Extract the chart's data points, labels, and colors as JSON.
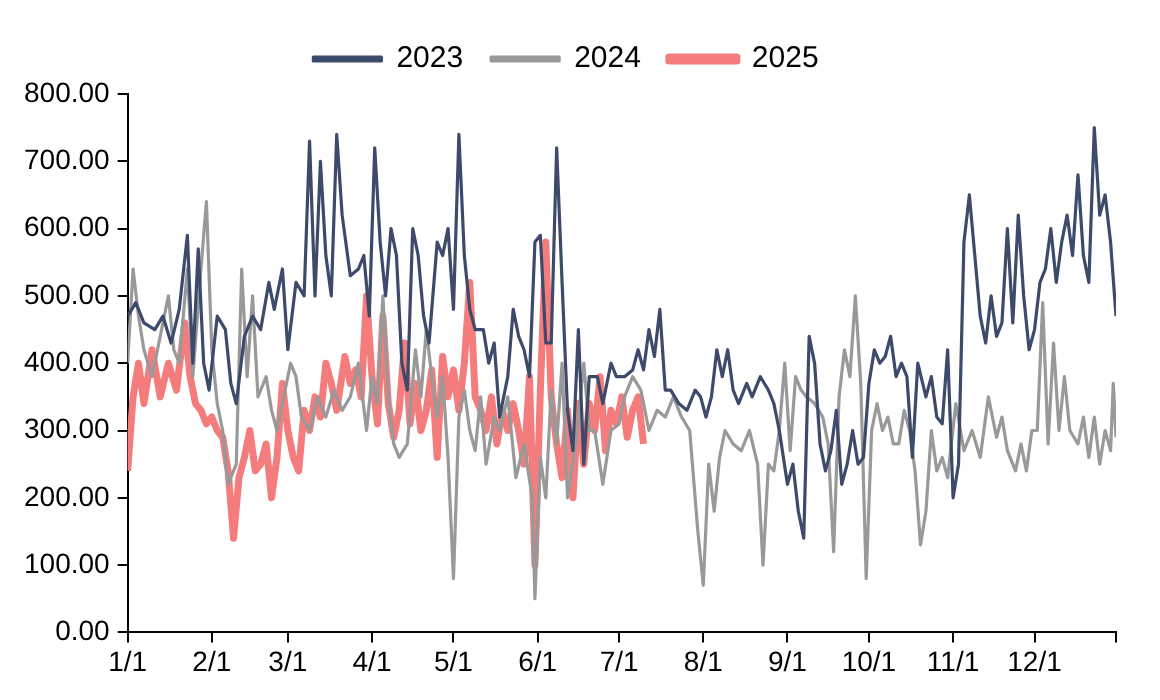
{
  "chart_data": {
    "type": "line",
    "legend": "top",
    "xlim": [
      "--01-01",
      "--12-31"
    ],
    "xticks": [
      {
        "value": "--01-01",
        "label": "1/1"
      },
      {
        "value": "--02-01",
        "label": "2/1"
      },
      {
        "value": "--03-01",
        "label": "3/1"
      },
      {
        "value": "--04-01",
        "label": "4/1"
      },
      {
        "value": "--05-01",
        "label": "5/1"
      },
      {
        "value": "--06-01",
        "label": "6/1"
      },
      {
        "value": "--07-01",
        "label": "7/1"
      },
      {
        "value": "--08-01",
        "label": "8/1"
      },
      {
        "value": "--09-01",
        "label": "9/1"
      },
      {
        "value": "--10-01",
        "label": "10/1"
      },
      {
        "value": "--11-01",
        "label": "11/1"
      },
      {
        "value": "--12-01",
        "label": "12/1"
      },
      {
        "value": "--12-31",
        "label": null
      }
    ],
    "ylim": [
      0,
      800
    ],
    "yticks": [
      {
        "value": 0,
        "label": "0.00"
      },
      {
        "value": 100,
        "label": "100.00"
      },
      {
        "value": 200,
        "label": "200.00"
      },
      {
        "value": 300,
        "label": "300.00"
      },
      {
        "value": 400,
        "label": "400.00"
      },
      {
        "value": 500,
        "label": "500.00"
      },
      {
        "value": 600,
        "label": "600.00"
      },
      {
        "value": 700,
        "label": "700.00"
      },
      {
        "value": 800,
        "label": "800.00"
      }
    ],
    "series": [
      {
        "name": "2023",
        "color": "#3d4a6b",
        "x": [
          "--01-01",
          "--01-04",
          "--01-07",
          "--01-11",
          "--01-14",
          "--01-17",
          "--01-20",
          "--01-23",
          "--01-25",
          "--01-27",
          "--01-29",
          "--01-31",
          "--02-03",
          "--02-06",
          "--02-08",
          "--02-10",
          "--02-13",
          "--02-16",
          "--02-19",
          "--02-22",
          "--02-24",
          "--02-27",
          "--03-01",
          "--03-04",
          "--03-07",
          "--03-09",
          "--03-11",
          "--03-13",
          "--03-15",
          "--03-17",
          "--03-19",
          "--03-21",
          "--03-24",
          "--03-27",
          "--03-29",
          "--03-31",
          "--04-02",
          "--04-04",
          "--04-06",
          "--04-08",
          "--04-10",
          "--04-12",
          "--04-14",
          "--04-16",
          "--04-18",
          "--04-20",
          "--04-22",
          "--04-25",
          "--04-27",
          "--04-29",
          "--05-01",
          "--05-03",
          "--05-05",
          "--05-07",
          "--05-09",
          "--05-12",
          "--05-14",
          "--05-16",
          "--05-18",
          "--05-21",
          "--05-23",
          "--05-25",
          "--05-27",
          "--05-29",
          "--05-31",
          "--06-02",
          "--06-04",
          "--06-06",
          "--06-08",
          "--06-10",
          "--06-12",
          "--06-14",
          "--06-16",
          "--06-18",
          "--06-20",
          "--06-23",
          "--06-25",
          "--06-28",
          "--06-30",
          "--07-03",
          "--07-06",
          "--07-08",
          "--07-10",
          "--07-12",
          "--07-14",
          "--07-16",
          "--07-18",
          "--07-20",
          "--07-23",
          "--07-26",
          "--07-29",
          "--07-31",
          "--08-02",
          "--08-04",
          "--08-06",
          "--08-08",
          "--08-10",
          "--08-12",
          "--08-14",
          "--08-17",
          "--08-19",
          "--08-22",
          "--08-25",
          "--08-27",
          "--08-29",
          "--09-01",
          "--09-03",
          "--09-05",
          "--09-07",
          "--09-09",
          "--09-11",
          "--09-13",
          "--09-15",
          "--09-17",
          "--09-19",
          "--09-21",
          "--09-23",
          "--09-25",
          "--09-27",
          "--09-29",
          "--10-01",
          "--10-03",
          "--10-05",
          "--10-07",
          "--10-09",
          "--10-11",
          "--10-13",
          "--10-15",
          "--10-17",
          "--10-19",
          "--10-22",
          "--10-24",
          "--10-26",
          "--10-28",
          "--10-30",
          "--11-01",
          "--11-03",
          "--11-05",
          "--11-07",
          "--11-09",
          "--11-11",
          "--11-13",
          "--11-15",
          "--11-17",
          "--11-19",
          "--11-21",
          "--11-23",
          "--11-25",
          "--11-27",
          "--11-29",
          "--12-01",
          "--12-03",
          "--12-05",
          "--12-07",
          "--12-09",
          "--12-11",
          "--12-13",
          "--12-15",
          "--12-17",
          "--12-19",
          "--12-21",
          "--12-23",
          "--12-25",
          "--12-27",
          "--12-29",
          "--12-31"
        ],
        "values": [
          470,
          490,
          460,
          450,
          470,
          430,
          480,
          590,
          400,
          570,
          400,
          360,
          470,
          450,
          370,
          340,
          440,
          470,
          450,
          520,
          480,
          540,
          420,
          520,
          500,
          730,
          500,
          700,
          560,
          500,
          740,
          620,
          530,
          540,
          560,
          470,
          720,
          580,
          500,
          600,
          560,
          400,
          360,
          600,
          560,
          470,
          430,
          580,
          560,
          600,
          480,
          740,
          560,
          480,
          450,
          450,
          400,
          430,
          320,
          380,
          480,
          440,
          420,
          380,
          580,
          590,
          430,
          430,
          720,
          520,
          330,
          270,
          450,
          250,
          380,
          380,
          340,
          400,
          380,
          380,
          390,
          420,
          390,
          450,
          410,
          480,
          360,
          360,
          340,
          330,
          360,
          350,
          320,
          350,
          420,
          380,
          420,
          360,
          340,
          370,
          350,
          380,
          360,
          340,
          300,
          220,
          250,
          180,
          140,
          440,
          400,
          280,
          240,
          270,
          330,
          220,
          250,
          300,
          250,
          260,
          370,
          420,
          400,
          410,
          440,
          380,
          400,
          380,
          260,
          400,
          350,
          380,
          320,
          310,
          420,
          200,
          250,
          580,
          650,
          560,
          470,
          430,
          500,
          440,
          460,
          600,
          460,
          620,
          500,
          420,
          450,
          520,
          540,
          600,
          520,
          580,
          620,
          560,
          680,
          560,
          520,
          750,
          620,
          650,
          580,
          470
        ]
      },
      {
        "name": "2024",
        "color": "#999999",
        "x": [
          "--01-01",
          "--01-03",
          "--01-05",
          "--01-07",
          "--01-10",
          "--01-13",
          "--01-16",
          "--01-18",
          "--01-20",
          "--01-23",
          "--01-25",
          "--01-28",
          "--01-30",
          "--02-01",
          "--02-03",
          "--02-05",
          "--02-07",
          "--02-10",
          "--02-12",
          "--02-14",
          "--02-16",
          "--02-18",
          "--02-21",
          "--02-23",
          "--02-25",
          "--02-27",
          "--03-02",
          "--03-04",
          "--03-06",
          "--03-09",
          "--03-12",
          "--03-15",
          "--03-18",
          "--03-21",
          "--03-24",
          "--03-27",
          "--03-30",
          "--04-01",
          "--04-03",
          "--04-05",
          "--04-07",
          "--04-09",
          "--04-11",
          "--04-14",
          "--04-17",
          "--04-19",
          "--04-21",
          "--04-23",
          "--04-25",
          "--04-27",
          "--04-29",
          "--05-01",
          "--05-03",
          "--05-05",
          "--05-07",
          "--05-09",
          "--05-11",
          "--05-13",
          "--05-16",
          "--05-18",
          "--05-21",
          "--05-24",
          "--05-27",
          "--05-30",
          "--05-31",
          "--06-02",
          "--06-04",
          "--06-06",
          "--06-08",
          "--06-10",
          "--06-12",
          "--06-15",
          "--06-18",
          "--06-20",
          "--06-22",
          "--06-25",
          "--06-28",
          "--07-01",
          "--07-03",
          "--07-06",
          "--07-09",
          "--07-12",
          "--07-15",
          "--07-18",
          "--07-21",
          "--07-24",
          "--07-27",
          "--07-30",
          "--08-01",
          "--08-03",
          "--08-05",
          "--08-07",
          "--08-09",
          "--08-12",
          "--08-15",
          "--08-18",
          "--08-21",
          "--08-23",
          "--08-25",
          "--08-27",
          "--08-29",
          "--08-31",
          "--09-02",
          "--09-04",
          "--09-06",
          "--09-08",
          "--09-11",
          "--09-14",
          "--09-16",
          "--09-18",
          "--09-20",
          "--09-22",
          "--09-24",
          "--09-26",
          "--09-28",
          "--09-30",
          "--10-02",
          "--10-04",
          "--10-06",
          "--10-08",
          "--10-10",
          "--10-12",
          "--10-14",
          "--10-16",
          "--10-18",
          "--10-20",
          "--10-22",
          "--10-24",
          "--10-26",
          "--10-28",
          "--10-30",
          "--11-02",
          "--11-05",
          "--11-08",
          "--11-11",
          "--11-14",
          "--11-17",
          "--11-19",
          "--11-21",
          "--11-24",
          "--11-26",
          "--11-28",
          "--11-30",
          "--12-02",
          "--12-04",
          "--12-06",
          "--12-08",
          "--12-10",
          "--12-12",
          "--12-14",
          "--12-17",
          "--12-19",
          "--12-21",
          "--12-23",
          "--12-25",
          "--12-27",
          "--12-29",
          "--12-30",
          "--12-31"
        ],
        "values": [
          400,
          540,
          470,
          420,
          380,
          440,
          500,
          420,
          400,
          540,
          380,
          540,
          640,
          420,
          340,
          300,
          220,
          250,
          540,
          380,
          500,
          350,
          380,
          330,
          300,
          340,
          400,
          380,
          320,
          300,
          350,
          320,
          360,
          330,
          350,
          400,
          300,
          380,
          340,
          500,
          350,
          280,
          260,
          280,
          420,
          350,
          450,
          380,
          320,
          380,
          260,
          80,
          320,
          360,
          300,
          270,
          350,
          250,
          320,
          300,
          350,
          230,
          280,
          200,
          50,
          260,
          200,
          360,
          280,
          400,
          200,
          280,
          400,
          300,
          300,
          220,
          300,
          310,
          350,
          380,
          360,
          300,
          330,
          320,
          350,
          320,
          300,
          150,
          70,
          250,
          180,
          260,
          300,
          280,
          270,
          300,
          250,
          100,
          250,
          240,
          300,
          400,
          270,
          380,
          360,
          350,
          340,
          320,
          280,
          120,
          350,
          420,
          380,
          500,
          370,
          80,
          300,
          340,
          300,
          320,
          280,
          280,
          330,
          300,
          240,
          130,
          180,
          300,
          240,
          260,
          230,
          340,
          270,
          300,
          260,
          350,
          290,
          320,
          270,
          240,
          280,
          240,
          300,
          300,
          490,
          280,
          430,
          300,
          380,
          300,
          280,
          320,
          260,
          320,
          250,
          300,
          270,
          370,
          290
        ]
      },
      {
        "name": "2025",
        "color": "#f47c7c",
        "x": [
          "--01-01",
          "--01-03",
          "--01-05",
          "--01-07",
          "--01-10",
          "--01-13",
          "--01-16",
          "--01-19",
          "--01-22",
          "--01-24",
          "--01-26",
          "--01-28",
          "--01-30",
          "--02-01",
          "--02-03",
          "--02-05",
          "--02-07",
          "--02-09",
          "--02-11",
          "--02-13",
          "--02-15",
          "--02-17",
          "--02-19",
          "--02-21",
          "--02-23",
          "--02-25",
          "--02-27",
          "--03-01",
          "--03-03",
          "--03-05",
          "--03-07",
          "--03-09",
          "--03-11",
          "--03-13",
          "--03-15",
          "--03-17",
          "--03-19",
          "--03-22",
          "--03-24",
          "--03-26",
          "--03-28",
          "--03-30",
          "--04-01",
          "--04-03",
          "--04-05",
          "--04-07",
          "--04-09",
          "--04-11",
          "--04-13",
          "--04-15",
          "--04-17",
          "--04-19",
          "--04-21",
          "--04-23",
          "--04-25",
          "--04-27",
          "--04-29",
          "--05-01",
          "--05-03",
          "--05-05",
          "--05-07",
          "--05-09",
          "--05-11",
          "--05-13",
          "--05-15",
          "--05-17",
          "--05-19",
          "--05-21",
          "--05-23",
          "--05-25",
          "--05-27",
          "--05-29",
          "--05-31",
          "--06-02",
          "--06-04",
          "--06-06",
          "--06-08",
          "--06-10",
          "--06-12",
          "--06-14",
          "--06-16",
          "--06-18",
          "--06-20",
          "--06-22",
          "--06-24",
          "--06-26",
          "--06-28",
          "--06-30",
          "--07-02",
          "--07-04",
          "--07-06",
          "--07-08",
          "--07-10"
        ],
        "values": [
          240,
          350,
          400,
          340,
          420,
          350,
          400,
          360,
          460,
          380,
          340,
          330,
          310,
          320,
          300,
          290,
          240,
          140,
          230,
          260,
          300,
          240,
          250,
          280,
          200,
          260,
          370,
          300,
          260,
          240,
          330,
          300,
          350,
          320,
          400,
          370,
          330,
          410,
          370,
          390,
          350,
          500,
          380,
          310,
          470,
          340,
          290,
          330,
          430,
          310,
          370,
          300,
          330,
          390,
          260,
          410,
          350,
          390,
          330,
          400,
          520,
          350,
          330,
          300,
          350,
          280,
          330,
          300,
          340,
          300,
          250,
          380,
          100,
          360,
          580,
          350,
          280,
          230,
          330,
          200,
          340,
          250,
          340,
          300,
          380,
          270,
          330,
          310,
          350,
          290,
          330,
          350,
          280
        ]
      }
    ]
  }
}
